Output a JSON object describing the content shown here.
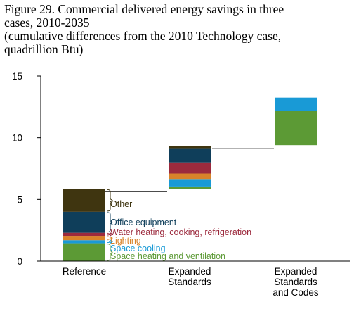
{
  "chart_data": {
    "type": "bar",
    "title_lines": [
      "Figure 29. Commercial delivered energy savings in three",
      "cases, 2010-2035",
      "(cumulative differences from the 2010 Technology case,",
      "quadrillion Btu)"
    ],
    "categories": [
      [
        "Reference"
      ],
      [
        "Expanded",
        "Standards"
      ],
      [
        "Expanded",
        "Standards",
        "and Codes"
      ]
    ],
    "ylim": [
      0,
      15
    ],
    "yticks": [
      0,
      5,
      10,
      15
    ],
    "grid": false,
    "legend": "annotations beside Reference bar",
    "series": [
      {
        "name": "Space heating and ventilation",
        "color": "#5c9a35",
        "values": [
          1.45,
          0.2,
          2.8
        ]
      },
      {
        "name": "Space cooling",
        "color": "#199ad6",
        "values": [
          0.25,
          0.55,
          1.05
        ]
      },
      {
        "name": "Lighting",
        "color": "#d9832a",
        "values": [
          0.35,
          0.5,
          0
        ]
      },
      {
        "name": "Water heating, cooking, refrigeration",
        "color": "#9c2a3d",
        "values": [
          0.25,
          0.9,
          0
        ]
      },
      {
        "name": "Office equipment",
        "color": "#0f3e5a",
        "values": [
          1.7,
          1.15,
          0
        ]
      },
      {
        "name": "Other",
        "color": "#3f3510",
        "values": [
          1.85,
          0.2,
          0
        ]
      }
    ],
    "bar_base": [
      0,
      5.85,
      9.4
    ],
    "annotations": [
      {
        "text": "Other",
        "color": "#3f3510"
      },
      {
        "text": "Office equipment",
        "color": "#0f3e5a"
      },
      {
        "text": "Water heating, cooking, refrigeration",
        "color": "#9c2a3d"
      },
      {
        "text": "Lighting",
        "color": "#d9832a"
      },
      {
        "text": "Space cooling",
        "color": "#199ad6"
      },
      {
        "text": "Space heating and ventilation",
        "color": "#5c9a35"
      }
    ]
  }
}
